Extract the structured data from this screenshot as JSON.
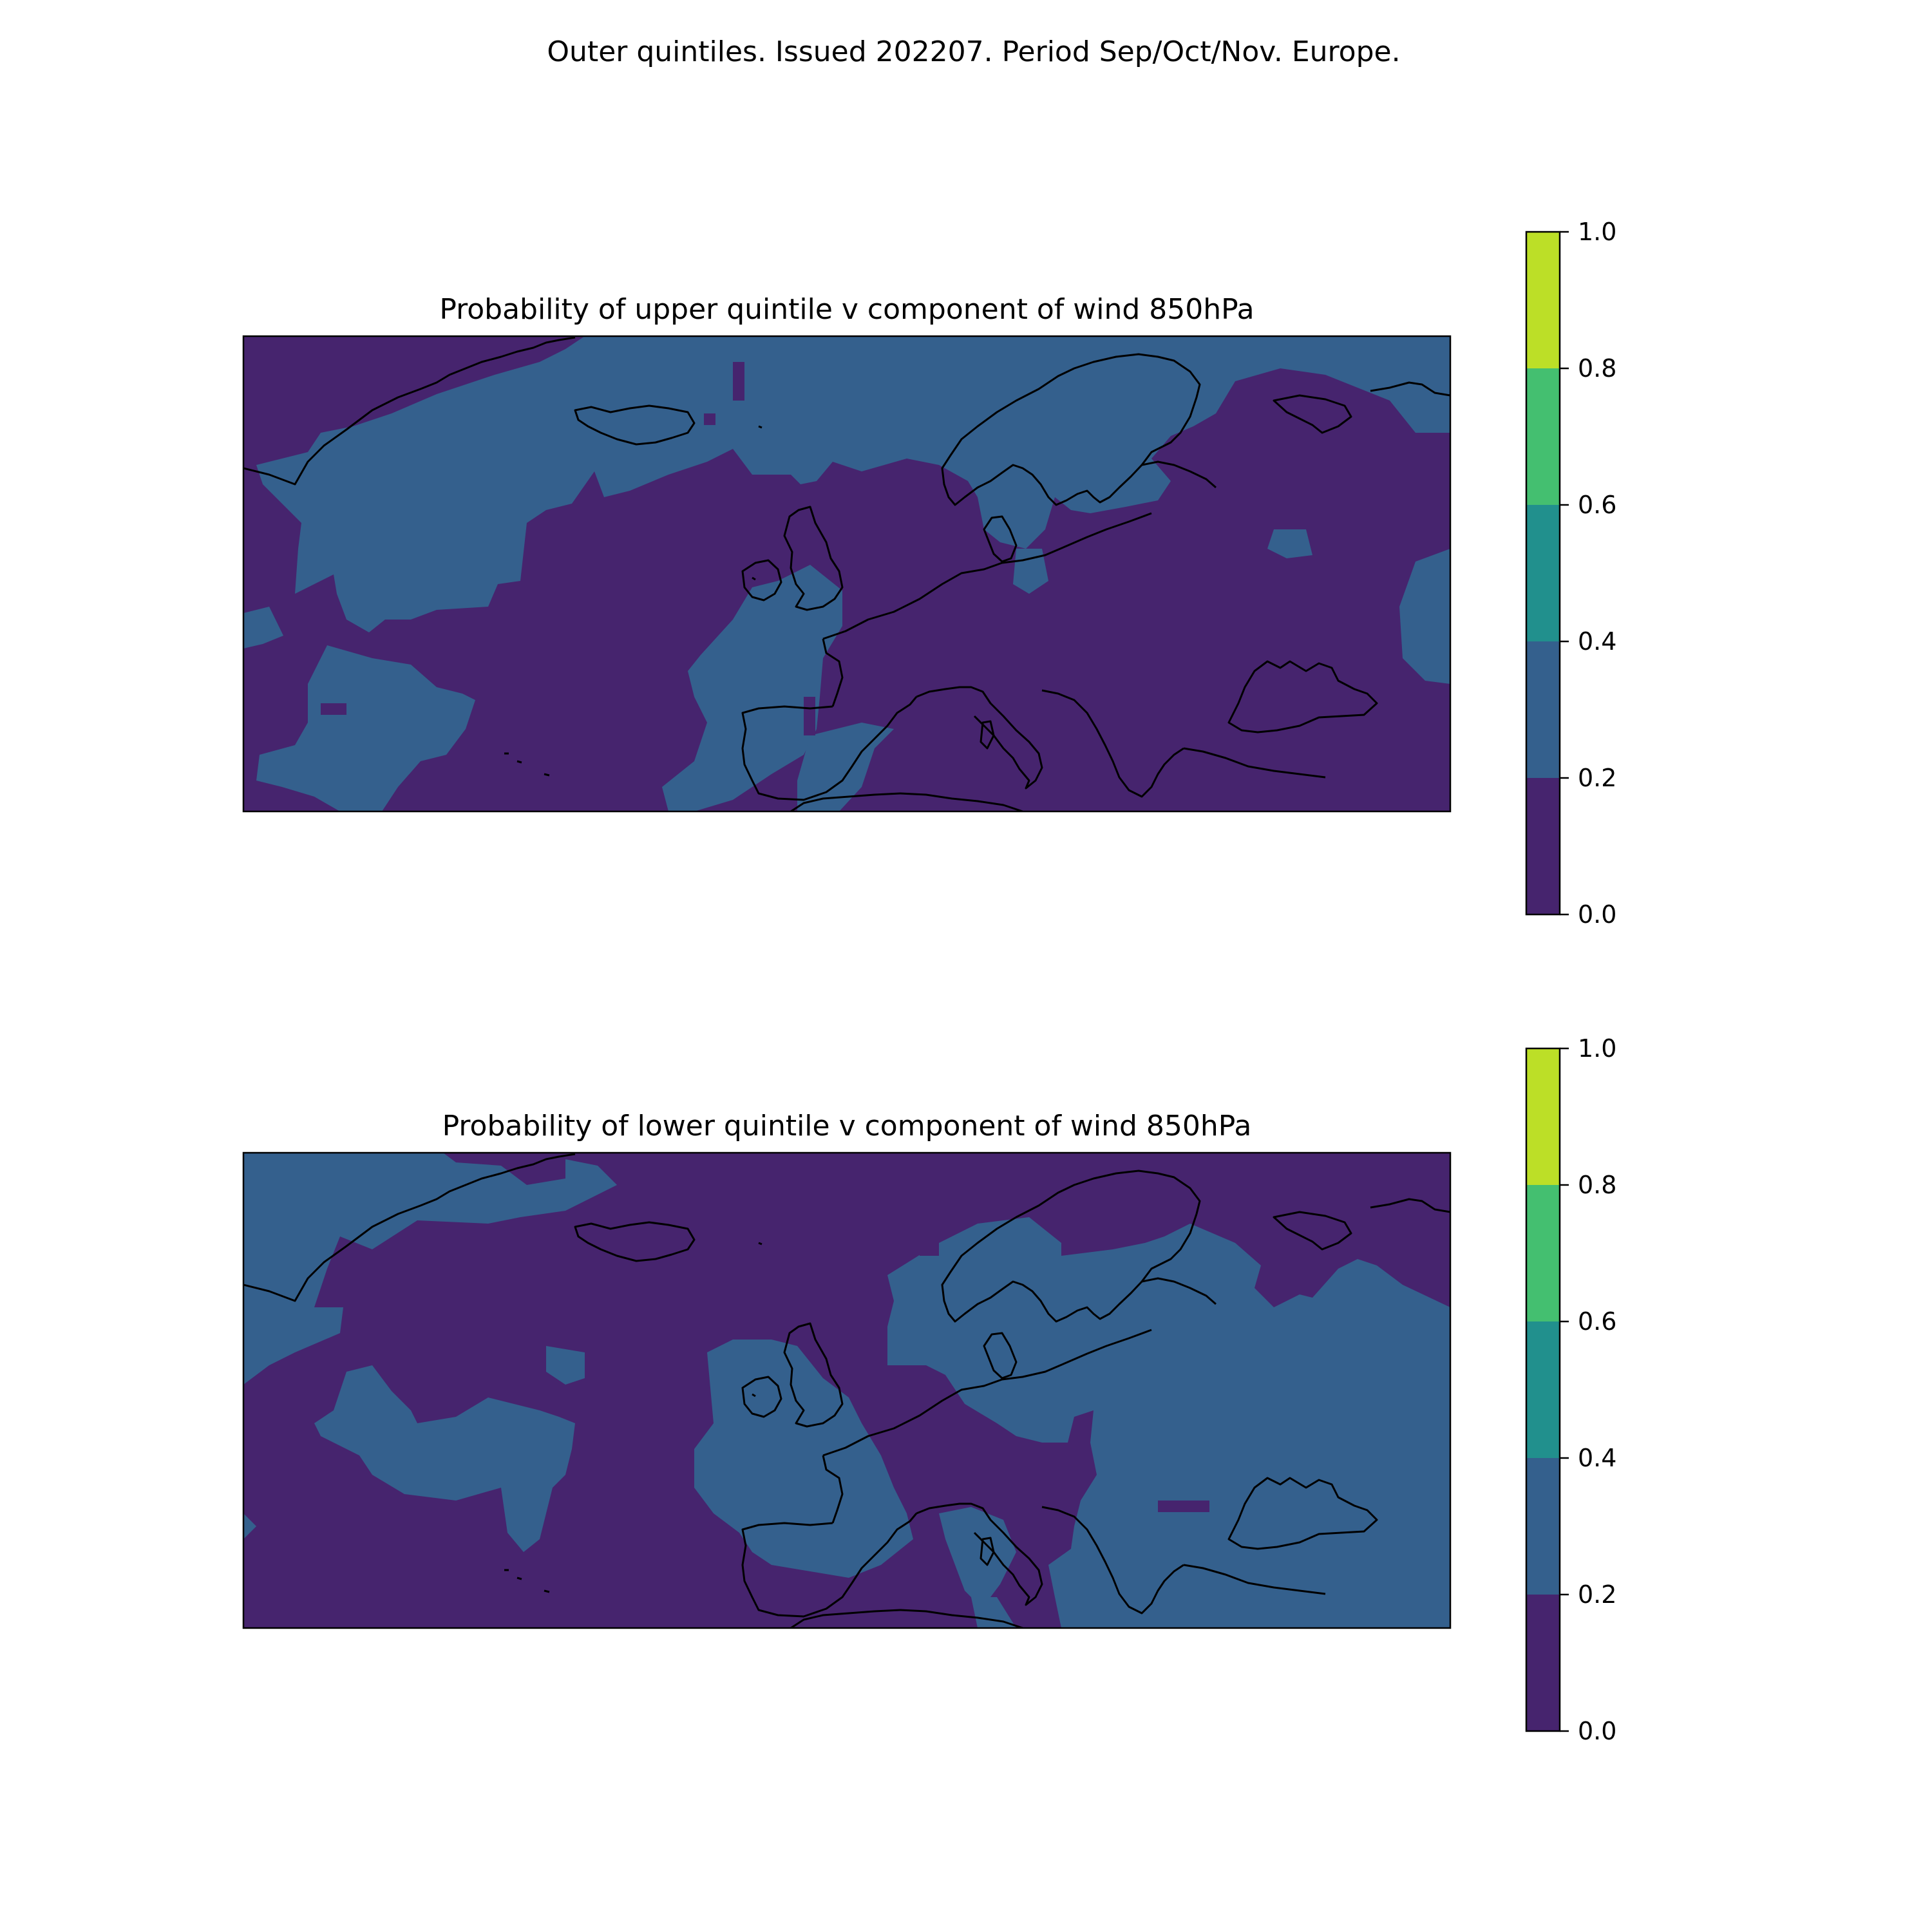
{
  "suptitle": "Outer quintiles. Issued 202207. Period Sep/Oct/Nov. Europe.",
  "colors": {
    "bin_0_0.2": "#46246e",
    "bin_0.2_0.4": "#34608d",
    "bin_0.4_0.6": "#21908d",
    "bin_0.6_0.8": "#44bf70",
    "bin_0.8_1.0": "#bcdf27",
    "coastline": "#000000"
  },
  "panels": [
    {
      "title": "Probability of upper quintile v component of wind 850hPa",
      "dominant_bin": "0.0-0.2",
      "secondary_bin": "0.2-0.4",
      "colorbar": {
        "boundaries": [
          0.0,
          0.2,
          0.4,
          0.6,
          0.8,
          1.0
        ],
        "tick_labels": [
          "0.0",
          "0.2",
          "0.4",
          "0.6",
          "0.8",
          "1.0"
        ]
      }
    },
    {
      "title": "Probability of lower quintile v component of wind 850hPa",
      "dominant_bin": "0.0-0.2",
      "secondary_bin": "0.2-0.4",
      "colorbar": {
        "boundaries": [
          0.0,
          0.2,
          0.4,
          0.6,
          0.8,
          1.0
        ],
        "tick_labels": [
          "0.0",
          "0.2",
          "0.4",
          "0.6",
          "0.8",
          "1.0"
        ]
      }
    }
  ]
}
